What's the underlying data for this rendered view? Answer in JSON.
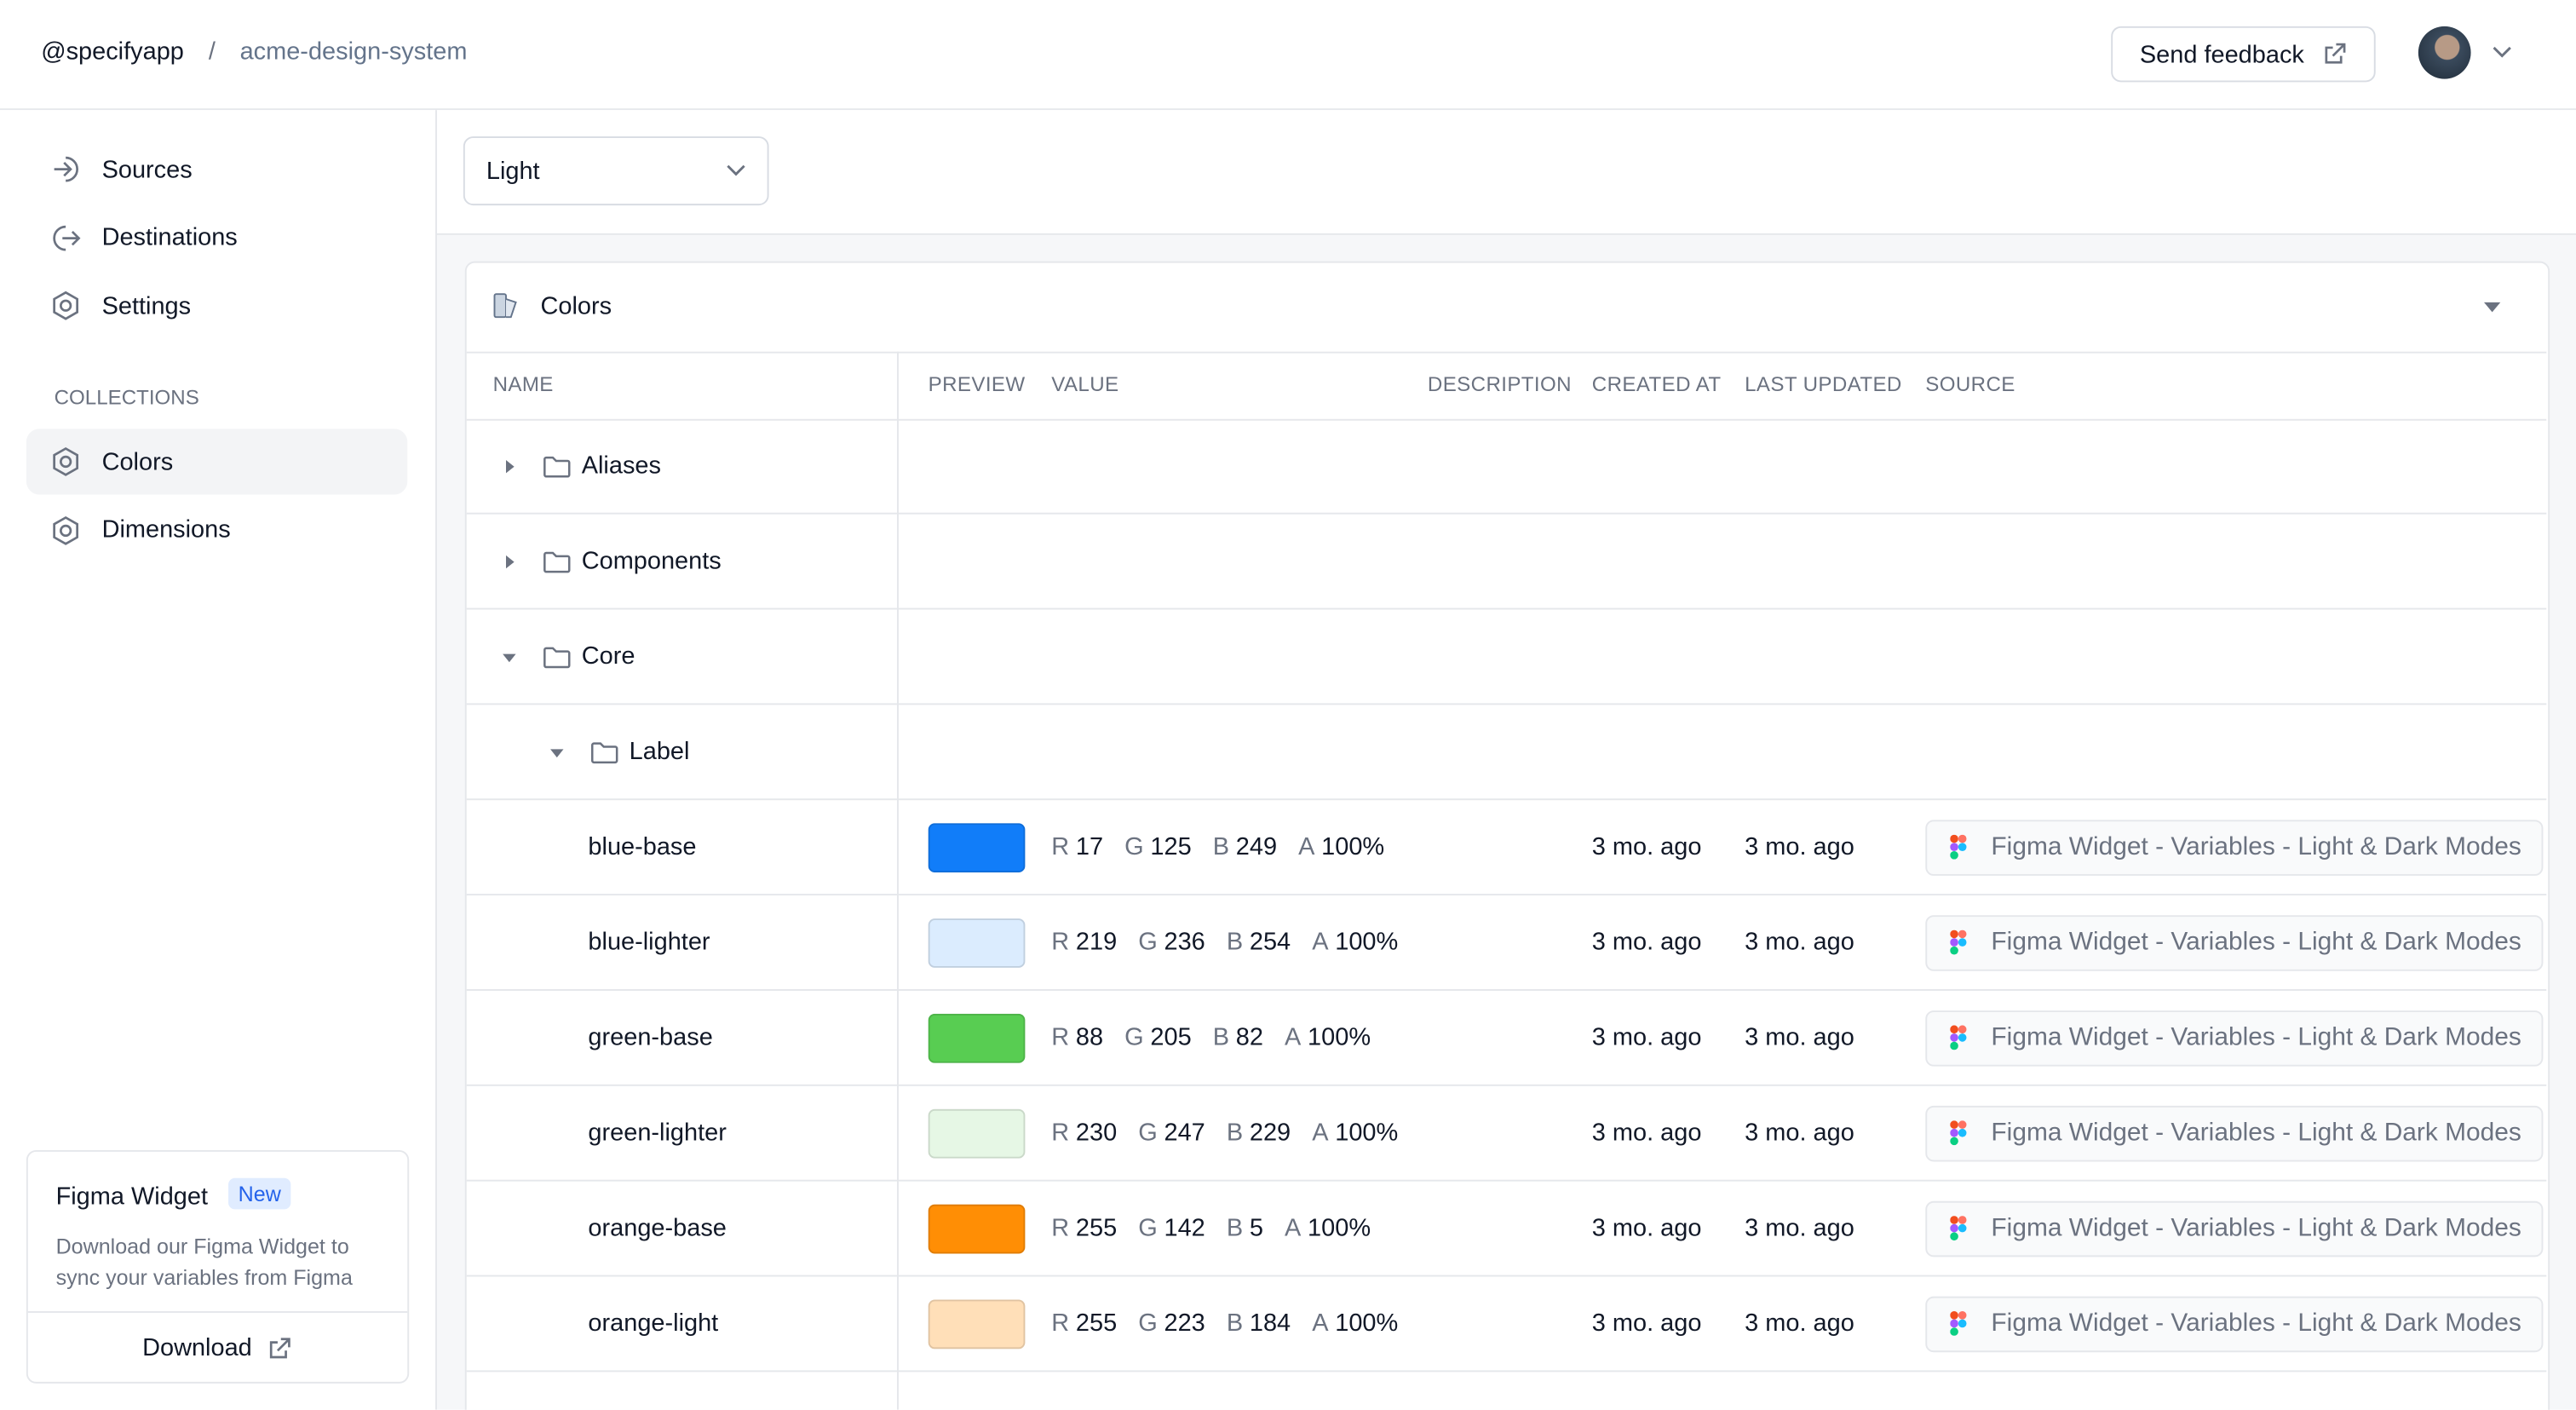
{
  "header": {
    "org": "@specifyapp",
    "separator": "/",
    "project": "acme-design-system",
    "feedback": "Send feedback"
  },
  "sidebar": {
    "nav": [
      "Sources",
      "Destinations",
      "Settings"
    ],
    "collections_label": "COLLECTIONS",
    "collections": [
      "Colors",
      "Dimensions"
    ],
    "widget": {
      "title": "Figma Widget",
      "badge": "New",
      "text": "Download our Figma Widget to sync your variables from Figma",
      "button": "Download"
    }
  },
  "mode_select": "Light",
  "panel": {
    "title": "Colors",
    "columns": [
      "NAME",
      "PREVIEW",
      "VALUE",
      "DESCRIPTION",
      "CREATED AT",
      "LAST UPDATED",
      "SOURCE"
    ],
    "groups": [
      "Aliases",
      "Components",
      "Core"
    ],
    "subgroup": "Label",
    "channel_labels": [
      "R",
      "G",
      "B",
      "A"
    ],
    "tokens": [
      {
        "name": "blue-base",
        "r": 17,
        "g": 125,
        "b": 249,
        "a": "100%",
        "created": "3 mo. ago",
        "updated": "3 mo. ago",
        "source": "Figma Widget - Variables - Light & Dark Modes"
      },
      {
        "name": "blue-lighter",
        "r": 219,
        "g": 236,
        "b": 254,
        "a": "100%",
        "created": "3 mo. ago",
        "updated": "3 mo. ago",
        "source": "Figma Widget - Variables - Light & Dark Modes"
      },
      {
        "name": "green-base",
        "r": 88,
        "g": 205,
        "b": 82,
        "a": "100%",
        "created": "3 mo. ago",
        "updated": "3 mo. ago",
        "source": "Figma Widget - Variables - Light & Dark Modes"
      },
      {
        "name": "green-lighter",
        "r": 230,
        "g": 247,
        "b": 229,
        "a": "100%",
        "created": "3 mo. ago",
        "updated": "3 mo. ago",
        "source": "Figma Widget - Variables - Light & Dark Modes"
      },
      {
        "name": "orange-base",
        "r": 255,
        "g": 142,
        "b": 5,
        "a": "100%",
        "created": "3 mo. ago",
        "updated": "3 mo. ago",
        "source": "Figma Widget - Variables - Light & Dark Modes"
      },
      {
        "name": "orange-light",
        "r": 255,
        "g": 223,
        "b": 184,
        "a": "100%",
        "created": "3 mo. ago",
        "updated": "3 mo. ago",
        "source": "Figma Widget - Variables - Light & Dark Modes"
      }
    ]
  }
}
